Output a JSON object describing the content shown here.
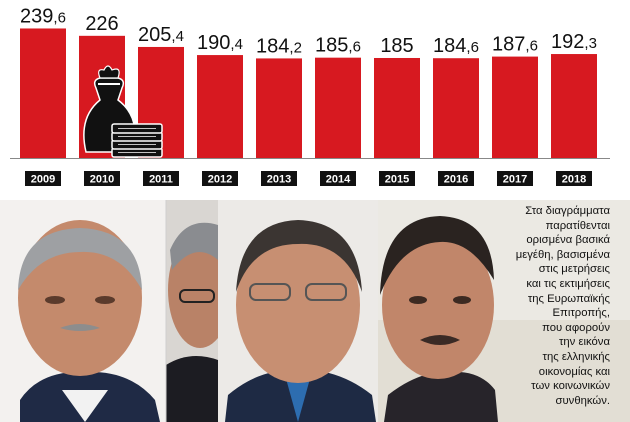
{
  "chart_data": {
    "type": "bar",
    "categories": [
      "2009",
      "2010",
      "2011",
      "2012",
      "2013",
      "2014",
      "2015",
      "2016",
      "2017",
      "2018"
    ],
    "values": [
      239.6,
      226,
      205.4,
      190.4,
      184.2,
      185.6,
      185,
      184.6,
      187.6,
      192.3
    ],
    "value_labels": [
      "239,6",
      "226",
      "205,4",
      "190,4",
      "184,2",
      "185,6",
      "185",
      "184,6",
      "187,6",
      "192,3"
    ],
    "ylim": [
      0,
      260
    ],
    "grid": false,
    "colors": {
      "bar": "#d71920",
      "value_text": "#111111",
      "year_box": "#111111",
      "year_text": "#ffffff"
    }
  },
  "caption": "Στα διαγράμματα\nπαρατίθενται\nορισμένα βασικά\nμεγέθη, βασισμένα\nστις μετρήσεις\nκαι τις εκτιμήσεις\nτης Ευρωπαϊκής\nΕπιτροπής,\nπου αφορούν\nτην εικόνα\nτης ελληνικής\nοικονομίας και\nτων κοινωνικών\nσυνθηκών.",
  "icons": {
    "money": "money-bag-icon"
  },
  "photos": [
    "portrait-photo-1",
    "portrait-photo-2",
    "portrait-photo-3",
    "portrait-photo-4"
  ]
}
